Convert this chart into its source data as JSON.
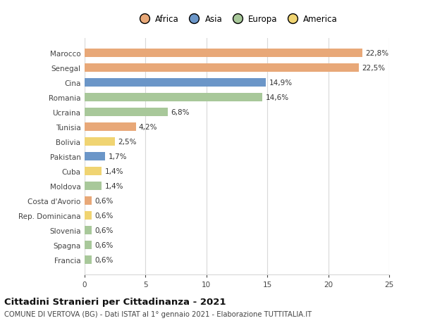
{
  "categories": [
    "Francia",
    "Spagna",
    "Slovenia",
    "Rep. Dominicana",
    "Costa d'Avorio",
    "Moldova",
    "Cuba",
    "Pakistan",
    "Bolivia",
    "Tunisia",
    "Ucraina",
    "Romania",
    "Cina",
    "Senegal",
    "Marocco"
  ],
  "values": [
    0.6,
    0.6,
    0.6,
    0.6,
    0.6,
    1.4,
    1.4,
    1.7,
    2.5,
    4.2,
    6.8,
    14.6,
    14.9,
    22.5,
    22.8
  ],
  "colors": [
    "#a8c89a",
    "#a8c89a",
    "#a8c89a",
    "#f0d472",
    "#e8a878",
    "#a8c89a",
    "#f0d472",
    "#6b96c8",
    "#f0d472",
    "#e8a878",
    "#a8c89a",
    "#a8c89a",
    "#6b96c8",
    "#e8a878",
    "#e8a878"
  ],
  "labels": [
    "0,6%",
    "0,6%",
    "0,6%",
    "0,6%",
    "0,6%",
    "1,4%",
    "1,4%",
    "1,7%",
    "2,5%",
    "4,2%",
    "6,8%",
    "14,6%",
    "14,9%",
    "22,5%",
    "22,8%"
  ],
  "legend": {
    "Africa": "#e8a878",
    "Asia": "#6b96c8",
    "Europa": "#a8c89a",
    "America": "#f0d472"
  },
  "xlim": [
    0,
    25
  ],
  "xticks": [
    0,
    5,
    10,
    15,
    20,
    25
  ],
  "title": "Cittadini Stranieri per Cittadinanza - 2021",
  "subtitle": "COMUNE DI VERTOVA (BG) - Dati ISTAT al 1° gennaio 2021 - Elaborazione TUTTITALIA.IT",
  "background_color": "#ffffff",
  "grid_color": "#d8d8d8"
}
